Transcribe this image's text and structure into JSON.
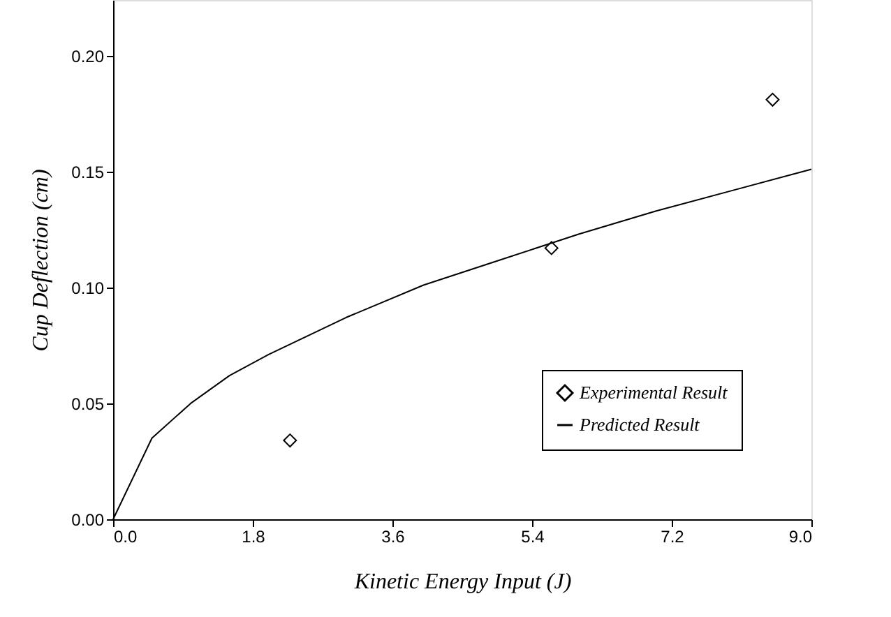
{
  "chart_data": {
    "type": "scatter",
    "xlabel": "Kinetic Energy Input (J)",
    "ylabel": "Cup Deflection (cm)",
    "xlim": [
      0,
      9
    ],
    "xticks": [
      {
        "value": 0,
        "label": "0.0"
      },
      1.8,
      3.6,
      5.4,
      7.2,
      {
        "value": 9,
        "label": "9.0"
      }
    ],
    "ylim": [
      0,
      0.224
    ],
    "yticks": [
      {
        "value": 0,
        "label": "0.00"
      },
      0.05,
      {
        "value": 0.1,
        "label": "0.10"
      },
      0.15,
      {
        "value": 0.2,
        "label": "0.20"
      }
    ],
    "grid": false,
    "legend": "bottom right",
    "series": [
      {
        "name": "Experimental Result",
        "marker": "diamond",
        "color": "#000000",
        "x": [
          2.28,
          5.65,
          8.5
        ],
        "values": [
          0.034,
          0.117,
          0.181
        ]
      },
      {
        "name": "Predicted Result",
        "type": "line",
        "marker": "none",
        "line_style": "solid",
        "color": "#000000",
        "x": [
          0,
          0.5,
          1,
          1.5,
          2,
          3,
          4,
          5,
          6,
          7,
          8,
          9
        ],
        "values": [
          0,
          0.035,
          0.05,
          0.062,
          0.071,
          0.087,
          0.101,
          0.112,
          0.123,
          0.133,
          0.142,
          0.151
        ]
      }
    ]
  }
}
